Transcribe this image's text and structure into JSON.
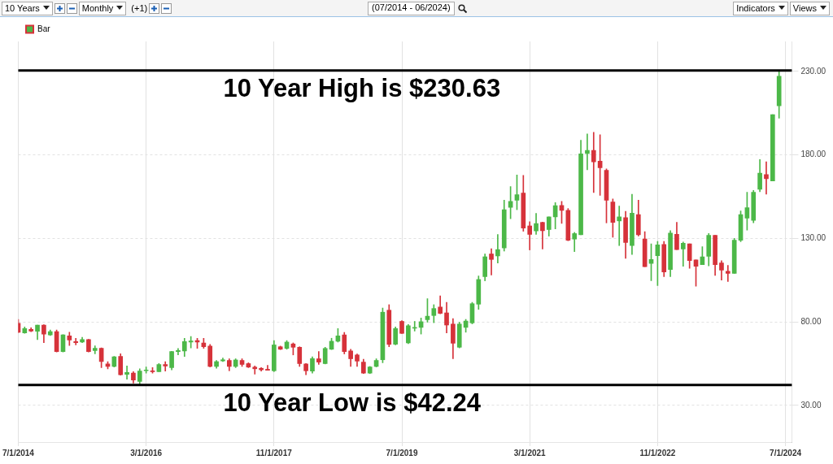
{
  "chart_data": {
    "type": "candlestick",
    "title": "(07/2014 - 06/2024)",
    "annotations": [
      "10 Years",
      "Monthly",
      "(+1)",
      "Indicators",
      "Views"
    ],
    "x": [
      "2014-07",
      "2014-08",
      "2014-09",
      "2014-10",
      "2014-11",
      "2014-12",
      "2015-01",
      "2015-02",
      "2015-03",
      "2015-04",
      "2015-05",
      "2015-06",
      "2015-07",
      "2015-08",
      "2015-09",
      "2015-10",
      "2015-11",
      "2015-12",
      "2016-01",
      "2016-02",
      "2016-03",
      "2016-04",
      "2016-05",
      "2016-06",
      "2016-07",
      "2016-08",
      "2016-09",
      "2016-10",
      "2016-11",
      "2016-12",
      "2017-01",
      "2017-02",
      "2017-03",
      "2017-04",
      "2017-05",
      "2017-06",
      "2017-07",
      "2017-08",
      "2017-09",
      "2017-10",
      "2017-11",
      "2017-12",
      "2018-01",
      "2018-02",
      "2018-03",
      "2018-04",
      "2018-05",
      "2018-06",
      "2018-07",
      "2018-08",
      "2018-09",
      "2018-10",
      "2018-11",
      "2018-12",
      "2019-01",
      "2019-02",
      "2019-03",
      "2019-04",
      "2019-05",
      "2019-06",
      "2019-07",
      "2019-08",
      "2019-09",
      "2019-10",
      "2019-11",
      "2019-12",
      "2020-01",
      "2020-02",
      "2020-03",
      "2020-04",
      "2020-05",
      "2020-06",
      "2020-07",
      "2020-08",
      "2020-09",
      "2020-10",
      "2020-11",
      "2020-12",
      "2021-01",
      "2021-02",
      "2021-03",
      "2021-04",
      "2021-05",
      "2021-06",
      "2021-07",
      "2021-08",
      "2021-09",
      "2021-10",
      "2021-11",
      "2021-12",
      "2022-01",
      "2022-02",
      "2022-03",
      "2022-04",
      "2022-05",
      "2022-06",
      "2022-07",
      "2022-08",
      "2022-09",
      "2022-10",
      "2022-11",
      "2022-12",
      "2023-01",
      "2023-02",
      "2023-03",
      "2023-04",
      "2023-05",
      "2023-06",
      "2023-07",
      "2023-08",
      "2023-09",
      "2023-10",
      "2023-11",
      "2023-12",
      "2024-01",
      "2024-02",
      "2024-03",
      "2024-04",
      "2024-05",
      "2024-06"
    ],
    "series": [
      {
        "name": "Bar",
        "ohlc": [
          [
            79.1,
            81.5,
            73.5,
            73.7
          ],
          [
            73.4,
            77.0,
            73.2,
            76.0
          ],
          [
            75.5,
            76.5,
            74.1,
            74.5
          ],
          [
            74.4,
            78.1,
            69.4,
            78.1
          ],
          [
            78.1,
            78.3,
            67.6,
            72.7
          ],
          [
            72.2,
            75.1,
            71.8,
            74.2
          ],
          [
            74.2,
            75.1,
            62.0,
            62.2
          ],
          [
            62.2,
            72.4,
            62.0,
            72.2
          ],
          [
            71.6,
            73.8,
            65.8,
            69.1
          ],
          [
            68.2,
            70.2,
            66.2,
            67.6
          ],
          [
            67.9,
            70.8,
            67.5,
            69.4
          ],
          [
            69.4,
            69.6,
            62.0,
            62.2
          ],
          [
            62.8,
            65.6,
            60.8,
            64.2
          ],
          [
            64.2,
            64.4,
            52.6,
            56.2
          ],
          [
            54.8,
            56.2,
            51.9,
            53.3
          ],
          [
            53.3,
            59.3,
            52.9,
            59.1
          ],
          [
            59.3,
            60.9,
            48.1,
            48.3
          ],
          [
            48.6,
            53.6,
            45.7,
            49.7
          ],
          [
            49.3,
            50.2,
            43.3,
            45.2
          ],
          [
            44.3,
            51.9,
            42.24,
            50.5
          ],
          [
            50.7,
            53.0,
            49.3,
            50.9
          ],
          [
            50.7,
            52.6,
            49.3,
            50.2
          ],
          [
            50.2,
            55.0,
            50.2,
            54.5
          ],
          [
            54.4,
            56.2,
            50.5,
            53.5
          ],
          [
            52.6,
            62.4,
            51.2,
            62.2
          ],
          [
            62.2,
            64.1,
            60.2,
            62.9
          ],
          [
            62.6,
            70.2,
            59.3,
            68.2
          ],
          [
            67.9,
            71.2,
            64.4,
            68.6
          ],
          [
            68.8,
            70.2,
            64.1,
            67.9
          ],
          [
            67.4,
            70.2,
            64.1,
            65.1
          ],
          [
            65.5,
            66.5,
            53.0,
            53.3
          ],
          [
            53.3,
            56.9,
            52.2,
            56.2
          ],
          [
            56.6,
            58.3,
            56.2,
            57.3
          ],
          [
            56.9,
            57.9,
            50.7,
            53.3
          ],
          [
            53.3,
            57.9,
            52.6,
            57.2
          ],
          [
            56.9,
            57.9,
            53.3,
            54.5
          ],
          [
            55.0,
            55.5,
            52.6,
            52.9
          ],
          [
            52.9,
            53.6,
            48.7,
            51.9
          ],
          [
            52.2,
            52.6,
            50.5,
            51.3
          ],
          [
            51.6,
            54.0,
            51.0,
            51.0
          ],
          [
            50.7,
            68.8,
            50.2,
            66.2
          ],
          [
            65.1,
            65.5,
            63.4,
            63.6
          ],
          [
            64.1,
            68.8,
            63.6,
            67.9
          ],
          [
            66.8,
            67.4,
            60.2,
            64.8
          ],
          [
            64.8,
            65.1,
            53.3,
            55.0
          ],
          [
            54.8,
            55.0,
            48.3,
            50.7
          ],
          [
            50.5,
            59.1,
            49.3,
            58.0
          ],
          [
            57.9,
            62.2,
            54.5,
            55.9
          ],
          [
            55.0,
            64.8,
            54.8,
            64.1
          ],
          [
            63.6,
            70.2,
            63.4,
            68.4
          ],
          [
            68.4,
            76.0,
            67.9,
            71.6
          ],
          [
            72.2,
            73.7,
            60.8,
            62.2
          ],
          [
            62.6,
            63.6,
            53.3,
            57.9
          ],
          [
            60.2,
            60.8,
            53.3,
            56.5
          ],
          [
            55.9,
            57.6,
            49.0,
            49.3
          ],
          [
            49.3,
            53.3,
            49.0,
            53.0
          ],
          [
            53.3,
            57.9,
            53.0,
            56.9
          ],
          [
            57.3,
            88.3,
            55.5,
            85.8
          ],
          [
            87.0,
            90.3,
            65.1,
            66.5
          ],
          [
            66.6,
            77.0,
            66.2,
            76.0
          ],
          [
            80.3,
            80.8,
            73.0,
            73.1
          ],
          [
            67.4,
            78.4,
            66.9,
            77.7
          ],
          [
            76.2,
            80.3,
            74.5,
            76.3
          ],
          [
            76.7,
            82.3,
            72.7,
            80.1
          ],
          [
            81.3,
            93.9,
            79.8,
            83.4
          ],
          [
            83.8,
            90.3,
            79.5,
            88.0
          ],
          [
            88.9,
            95.6,
            84.8,
            85.1
          ],
          [
            85.4,
            91.7,
            73.4,
            78.1
          ],
          [
            78.7,
            82.0,
            57.9,
            67.2
          ],
          [
            64.8,
            79.8,
            64.4,
            78.7
          ],
          [
            76.7,
            81.5,
            73.8,
            80.5
          ],
          [
            79.4,
            91.7,
            78.8,
            90.9
          ],
          [
            90.6,
            107.5,
            87.5,
            105.4
          ],
          [
            107.1,
            120.7,
            104.6,
            119.0
          ],
          [
            120.7,
            123.8,
            108.1,
            117.4
          ],
          [
            119.5,
            132.4,
            115.2,
            123.3
          ],
          [
            124.3,
            152.9,
            122.4,
            147.2
          ],
          [
            148.6,
            161.1,
            141.8,
            152.2
          ],
          [
            152.9,
            168.0,
            147.2,
            156.2
          ],
          [
            157.2,
            167.7,
            134.3,
            136.2
          ],
          [
            137.5,
            140.0,
            123.1,
            132.4
          ],
          [
            134.5,
            145.0,
            132.4,
            138.9
          ],
          [
            139.6,
            139.8,
            123.6,
            134.6
          ],
          [
            135.3,
            142.9,
            131.4,
            142.9
          ],
          [
            142.9,
            151.5,
            135.7,
            149.6
          ],
          [
            149.8,
            152.2,
            139.0,
            146.8
          ],
          [
            146.8,
            147.9,
            128.6,
            128.9
          ],
          [
            129.6,
            133.6,
            122.1,
            132.9
          ],
          [
            132.2,
            188.8,
            132.2,
            180.6
          ],
          [
            180.9,
            192.6,
            171.1,
            182.7
          ],
          [
            182.7,
            193.5,
            157.5,
            175.9
          ],
          [
            176.3,
            192.1,
            155.8,
            172.3
          ],
          [
            170.8,
            171.6,
            139.3,
            152.9
          ],
          [
            151.8,
            153.7,
            130.7,
            139.6
          ],
          [
            140.5,
            149.4,
            125.7,
            142.9
          ],
          [
            142.5,
            146.2,
            118.1,
            127.6
          ],
          [
            125.7,
            156.5,
            120.4,
            145.1
          ],
          [
            144.3,
            152.9,
            131.4,
            132.2
          ],
          [
            129.7,
            134.0,
            113.1,
            113.1
          ],
          [
            115.0,
            126.7,
            104.7,
            117.4
          ],
          [
            119.7,
            128.2,
            101.8,
            126.1
          ],
          [
            126.4,
            128.2,
            107.1,
            109.9
          ],
          [
            111.4,
            134.7,
            107.1,
            133.2
          ],
          [
            132.5,
            139.6,
            123.3,
            123.3
          ],
          [
            123.6,
            127.9,
            113.3,
            127.1
          ],
          [
            126.7,
            126.7,
            112.1,
            116.7
          ],
          [
            117.1,
            117.1,
            101.4,
            113.3
          ],
          [
            114.3,
            125.0,
            114.3,
            118.9
          ],
          [
            119.3,
            132.9,
            113.6,
            131.9
          ],
          [
            131.9,
            131.9,
            107.8,
            114.3
          ],
          [
            115.3,
            116.7,
            105.0,
            111.0
          ],
          [
            110.3,
            113.8,
            104.2,
            109.0
          ],
          [
            109.0,
            130.0,
            109.0,
            128.9
          ],
          [
            128.9,
            146.5,
            128.1,
            144.3
          ],
          [
            142.2,
            157.7,
            135.0,
            148.4
          ],
          [
            140.8,
            158.7,
            139.3,
            157.7
          ],
          [
            159.4,
            177.3,
            158.0,
            169.1
          ],
          [
            168.3,
            175.9,
            156.5,
            165.8
          ],
          [
            164.4,
            204.1,
            164.4,
            204.1
          ],
          [
            209.5,
            230.63,
            202.0,
            227.2
          ]
        ],
        "colors": [
          "#d6323a",
          "#4cb848",
          "#d6323a",
          "#4cb848",
          "#d6323a",
          "#4cb848",
          "#d6323a",
          "#4cb848",
          "#d6323a",
          "#d6323a",
          "#4cb848",
          "#d6323a",
          "#4cb848",
          "#d6323a",
          "#d6323a",
          "#4cb848",
          "#d6323a",
          "#4cb848",
          "#d6323a",
          "#4cb848",
          "#4cb848",
          "#d6323a",
          "#4cb848",
          "#d6323a",
          "#4cb848",
          "#4cb848",
          "#4cb848",
          "#4cb848",
          "#d6323a",
          "#d6323a",
          "#d6323a",
          "#4cb848",
          "#4cb848",
          "#d6323a",
          "#4cb848",
          "#d6323a",
          "#d6323a",
          "#d6323a",
          "#d6323a",
          "#d6323a",
          "#4cb848",
          "#d6323a",
          "#4cb848",
          "#d6323a",
          "#d6323a",
          "#d6323a",
          "#4cb848",
          "#d6323a",
          "#4cb848",
          "#4cb848",
          "#4cb848",
          "#d6323a",
          "#d6323a",
          "#d6323a",
          "#d6323a",
          "#4cb848",
          "#4cb848",
          "#4cb848",
          "#d6323a",
          "#4cb848",
          "#d6323a",
          "#4cb848",
          "#4cb848",
          "#4cb848",
          "#4cb848",
          "#4cb848",
          "#d6323a",
          "#d6323a",
          "#d6323a",
          "#4cb848",
          "#4cb848",
          "#4cb848",
          "#4cb848",
          "#4cb848",
          "#d6323a",
          "#4cb848",
          "#4cb848",
          "#4cb848",
          "#4cb848",
          "#d6323a",
          "#d6323a",
          "#4cb848",
          "#d6323a",
          "#4cb848",
          "#4cb848",
          "#d6323a",
          "#d6323a",
          "#4cb848",
          "#4cb848",
          "#4cb848",
          "#d6323a",
          "#d6323a",
          "#d6323a",
          "#d6323a",
          "#4cb848",
          "#d6323a",
          "#4cb848",
          "#d6323a",
          "#d6323a",
          "#4cb848",
          "#4cb848",
          "#d6323a",
          "#4cb848",
          "#d6323a",
          "#4cb848",
          "#d6323a",
          "#d6323a",
          "#4cb848",
          "#4cb848",
          "#d6323a",
          "#d6323a",
          "#d6323a",
          "#4cb848",
          "#4cb848",
          "#4cb848",
          "#4cb848",
          "#4cb848",
          "#d6323a",
          "#4cb848",
          "#4cb848"
        ]
      }
    ],
    "xlim": [
      "2014-07-01",
      "2024-08-01"
    ],
    "xticks": [
      {
        "value": "2014-07-01",
        "label": "7/1/2014"
      },
      {
        "value": "2016-03-01",
        "label": "3/1/2016"
      },
      {
        "value": "2017-11-01",
        "label": "11/1/2017"
      },
      {
        "value": "2019-07-01",
        "label": "7/1/2019"
      },
      {
        "value": "2021-03-01",
        "label": "3/1/2021"
      },
      {
        "value": "2022-11-01",
        "label": "11/1/2022"
      },
      {
        "value": "2024-07-01",
        "label": "7/1/2024"
      }
    ],
    "ylim": [
      8,
      248
    ],
    "yticks": [
      {
        "value": 30,
        "label": "30.00"
      },
      {
        "value": 80,
        "label": "80.00"
      },
      {
        "value": 130,
        "label": "130.00"
      },
      {
        "value": 180,
        "label": "180.00"
      },
      {
        "value": 230,
        "label": "230.00"
      }
    ],
    "ref_lines": [
      {
        "axis": "y",
        "value": 230.63,
        "label": "10 Year High is $230.63",
        "color": "#000000"
      },
      {
        "axis": "y",
        "value": 42.24,
        "label": "10 Year Low is $42.24",
        "color": "#000000"
      }
    ],
    "grid": true,
    "legend": "top left"
  }
}
